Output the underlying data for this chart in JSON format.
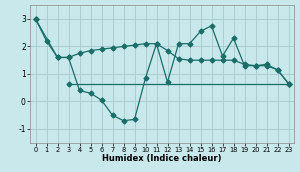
{
  "xlabel": "Humidex (Indice chaleur)",
  "bg_color": "#c8e8ec",
  "grid_color": "#a8c8cc",
  "line_color": "#1a6e68",
  "xlim": [
    -0.5,
    23.5
  ],
  "ylim": [
    -1.5,
    3.5
  ],
  "yticks": [
    -1,
    0,
    1,
    2,
    3
  ],
  "xticks": [
    0,
    1,
    2,
    3,
    4,
    5,
    6,
    7,
    8,
    9,
    10,
    11,
    12,
    13,
    14,
    15,
    16,
    17,
    18,
    19,
    20,
    21,
    22,
    23
  ],
  "line1_x": [
    0,
    1,
    2,
    3,
    4,
    5,
    6,
    7,
    8,
    9,
    10,
    11,
    12,
    13,
    14,
    15,
    16,
    17,
    18,
    19,
    20,
    21,
    22,
    23
  ],
  "line1_y": [
    3.0,
    2.2,
    1.6,
    1.6,
    0.4,
    0.3,
    0.05,
    -0.5,
    -0.7,
    -0.65,
    0.85,
    2.1,
    0.7,
    2.1,
    2.1,
    2.55,
    2.75,
    1.65,
    2.3,
    1.3,
    1.3,
    1.35,
    1.15,
    0.65
  ],
  "line2_x": [
    0,
    2,
    3,
    4,
    5,
    6,
    7,
    8,
    9,
    10,
    11,
    12,
    13,
    14,
    15,
    16,
    17,
    18,
    19,
    20,
    21,
    22,
    23
  ],
  "line2_y": [
    3.0,
    1.6,
    1.6,
    1.75,
    1.85,
    1.9,
    1.95,
    2.0,
    2.05,
    2.1,
    2.1,
    1.85,
    1.55,
    1.5,
    1.5,
    1.5,
    1.5,
    1.5,
    1.35,
    1.3,
    1.3,
    1.15,
    0.65
  ],
  "line3_x": [
    3,
    23
  ],
  "line3_y": [
    0.65,
    0.65
  ]
}
